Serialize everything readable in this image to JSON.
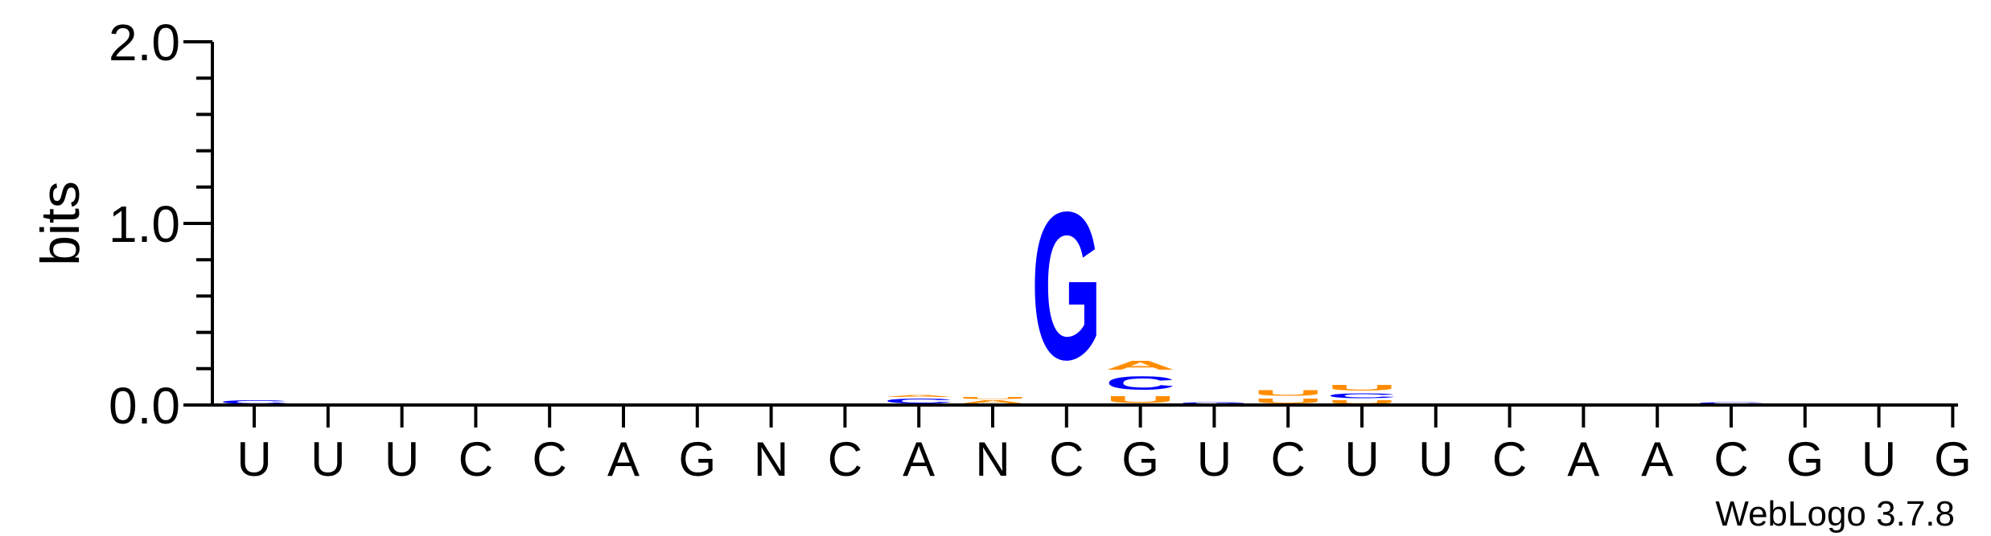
{
  "chart_data": {
    "type": "sequence-logo",
    "ylabel": "bits",
    "ylim": [
      0,
      2.0
    ],
    "yticks": [
      "0.0",
      "1.0",
      "2.0"
    ],
    "positions": [
      "U",
      "U",
      "U",
      "C",
      "C",
      "A",
      "G",
      "N",
      "C",
      "A",
      "N",
      "C",
      "G",
      "U",
      "C",
      "U",
      "U",
      "C",
      "A",
      "A",
      "C",
      "G",
      "U",
      "G"
    ],
    "colors": {
      "G": "#0000ff",
      "C": "#0000ff",
      "A": "#ff8c00",
      "U": "#ff8c00"
    },
    "stacks": [
      [
        {
          "letter": "C",
          "bits": 0.03
        }
      ],
      [],
      [],
      [],
      [],
      [],
      [],
      [],
      [],
      [
        {
          "letter": "C",
          "bits": 0.04
        },
        {
          "letter": "A",
          "bits": 0.02
        }
      ],
      [
        {
          "letter": "A",
          "bits": 0.03
        },
        {
          "letter": "U",
          "bits": 0.02
        }
      ],
      [
        {
          "letter": "G",
          "bits": 1.3
        }
      ],
      [
        {
          "letter": "U",
          "bits": 0.06
        },
        {
          "letter": "C",
          "bits": 0.12
        },
        {
          "letter": "A",
          "bits": 0.08
        }
      ],
      [
        {
          "letter": "G",
          "bits": 0.02
        }
      ],
      [
        {
          "letter": "U",
          "bits": 0.04
        },
        {
          "letter": "U",
          "bits": 0.05
        }
      ],
      [
        {
          "letter": "U",
          "bits": 0.03
        },
        {
          "letter": "C",
          "bits": 0.04
        },
        {
          "letter": "U",
          "bits": 0.05
        }
      ],
      [],
      [],
      [
        {
          "letter": "C",
          "bits": 0.01
        }
      ],
      [],
      [
        {
          "letter": "C",
          "bits": 0.02
        }
      ],
      [],
      [],
      []
    ]
  },
  "credit": "WebLogo 3.7.8"
}
